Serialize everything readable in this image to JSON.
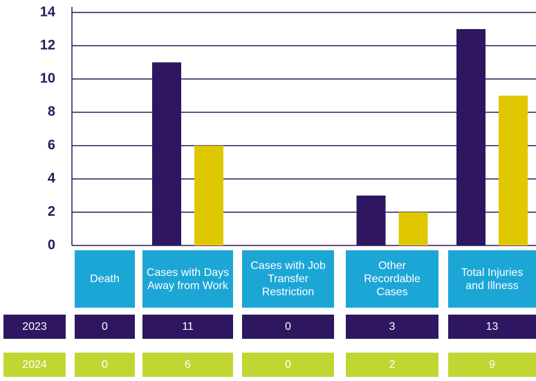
{
  "chart_data": {
    "type": "bar",
    "categories": [
      "Death",
      "Cases with Days Away from Work",
      "Cases with Job Transfer Restriction",
      "Other Recordable Cases",
      "Total Injuries and Illness"
    ],
    "series": [
      {
        "name": "2023",
        "color": "#2e1760",
        "values": [
          0,
          11,
          0,
          3,
          13
        ]
      },
      {
        "name": "2024",
        "color": "#e0c800",
        "values": [
          0,
          6,
          0,
          2,
          9
        ]
      }
    ],
    "ylim": [
      0,
      14
    ],
    "yticks": [
      0,
      2,
      4,
      6,
      8,
      10,
      12,
      14
    ],
    "grid": true
  }
}
